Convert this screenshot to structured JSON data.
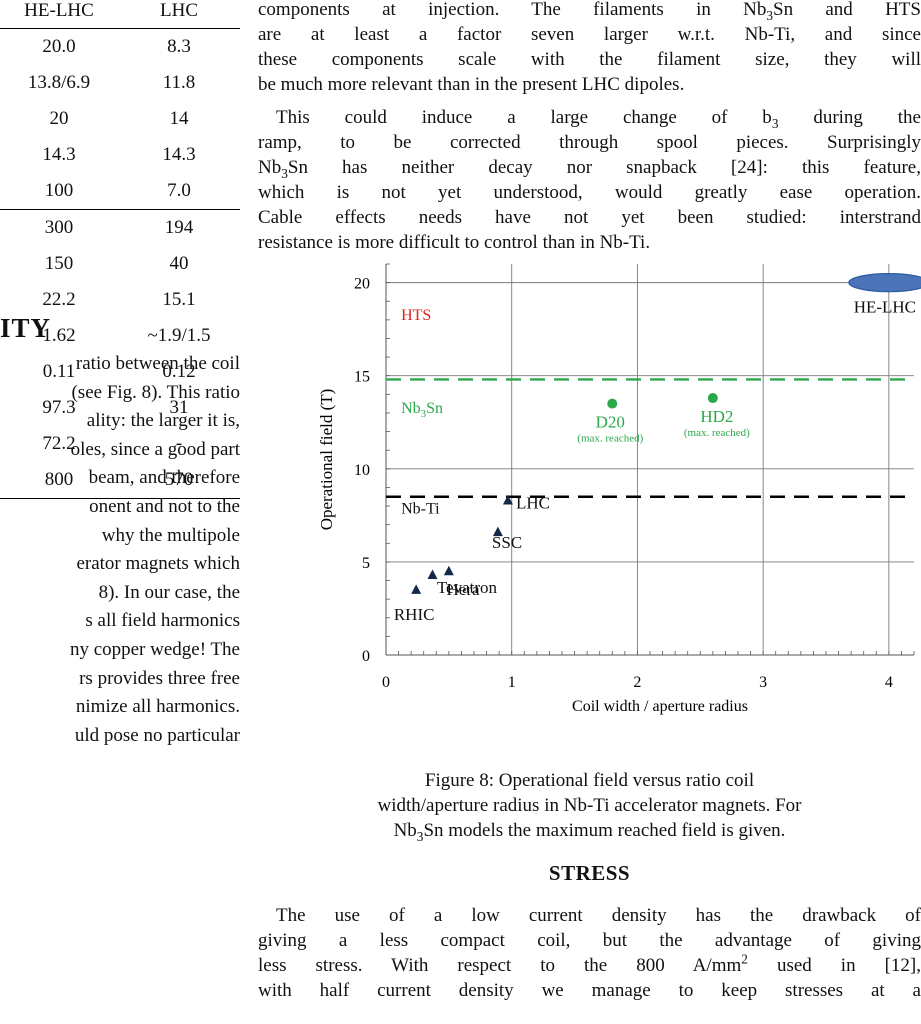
{
  "table": {
    "header": [
      "HE-LHC",
      "LHC"
    ],
    "rows": [
      [
        "20.0",
        "8.3"
      ],
      [
        "13.8/6.9",
        "11.8"
      ],
      [
        "20",
        "14"
      ],
      [
        "14.3",
        "14.3"
      ],
      [
        "100",
        "7.0"
      ],
      [
        "300",
        "194"
      ],
      [
        "150",
        "40"
      ],
      [
        "22.2",
        "15.1"
      ],
      [
        "1.62",
        "~1.9/1.5"
      ],
      [
        "0.11",
        "0.12"
      ],
      [
        "97.3",
        "31"
      ],
      [
        "72.2",
        "-"
      ],
      [
        "800",
        "570"
      ]
    ]
  },
  "left": {
    "heading": "ITY",
    "lines": [
      "ratio between the coil",
      "(see Fig. 8). This ratio",
      "ality: the larger it is,",
      "oles, since a good part",
      "beam, and therefore",
      "onent and not to the",
      "why the multipole",
      "erator magnets which",
      "8). In our case, the",
      "s all field harmonics",
      "ny copper wedge! The",
      "rs provides three free",
      "nimize all harmonics.",
      "uld pose no particular"
    ]
  },
  "right_top": {
    "p1": [
      [
        "components at injection. The filaments in Nb",
        "3",
        "Sn and HTS"
      ],
      [
        "are at least a factor seven larger w.r.t. Nb-Ti, and since",
        "",
        ""
      ],
      [
        "these components scale with the filament size, they will",
        "",
        ""
      ],
      [
        "be much more relevant than in the present LHC dipoles.",
        "",
        ""
      ]
    ],
    "p2_l1_a": "This could induce a large change of b",
    "p2_l1_sub": "3",
    "p2_l1_b": " during the",
    "p2_l2": "ramp, to be corrected through spool pieces. Surprisingly",
    "p2_l3_a": "Nb",
    "p2_l3_sub": "3",
    "p2_l3_b": "Sn has neither decay nor snapback [24]: this feature,",
    "p2_l4": "which is not yet understood, would greatly ease operation.",
    "p2_l5": "Cable effects needs have not yet been studied: interstrand",
    "p2_l6": "resistance is more difficult to control than in Nb-Ti."
  },
  "chart_data": {
    "type": "scatter",
    "xlabel": "Coil width  / aperture radius",
    "ylabel": "Operational field (T)",
    "xlim": [
      0,
      4.2
    ],
    "ylim": [
      0,
      21
    ],
    "x_ticks": [
      "0",
      "1",
      "2",
      "3",
      "4"
    ],
    "y_ticks": [
      "0",
      "5",
      "10",
      "15",
      "20"
    ],
    "grid": true,
    "hlines": [
      {
        "y": 14.8,
        "color": "#2BA84A",
        "style": "dashed"
      },
      {
        "y": 8.5,
        "color": "#000000",
        "style": "dashed"
      }
    ],
    "region_labels": [
      {
        "text": "HTS",
        "x": 0.12,
        "y": 18.0,
        "color": "#E02020"
      },
      {
        "text": "Nb₃Sn",
        "x": 0.12,
        "y": 13.0,
        "color": "#2BA84A"
      },
      {
        "text": "Nb-Ti",
        "x": 0.12,
        "y": 7.6,
        "color": "#111111"
      }
    ],
    "series": [
      {
        "marker": "triangle",
        "color": "#13284A",
        "points": [
          {
            "label": "RHIC",
            "x": 0.24,
            "y": 3.5
          },
          {
            "label": "Hera",
            "x": 0.37,
            "y": 4.3
          },
          {
            "label": "Tevatron",
            "x": 0.5,
            "y": 4.5
          },
          {
            "label": "SSC",
            "x": 0.89,
            "y": 6.6
          },
          {
            "label": "LHC",
            "x": 0.97,
            "y": 8.3
          }
        ]
      },
      {
        "marker": "circle",
        "color": "#2BA84A",
        "points": [
          {
            "label": "D20",
            "sublabel": "(max. reached)",
            "x": 1.8,
            "y": 13.5
          },
          {
            "label": "HD2",
            "sublabel": "(max. reached)",
            "x": 2.6,
            "y": 13.8
          }
        ]
      },
      {
        "marker": "ellipse",
        "color": "#4A73B8",
        "points": [
          {
            "label": "HE-LHC",
            "x": 4.0,
            "y": 20.0
          }
        ]
      }
    ]
  },
  "caption": {
    "l1": "Figure 8: Operational field versus ratio coil",
    "l2": "width/aperture radius in Nb-Ti accelerator magnets. For",
    "l3_a": "Nb",
    "l3_sub": "3",
    "l3_b": "Sn models the maximum reached field is given."
  },
  "stress": {
    "heading": "STRESS",
    "l1": "The use of a low current density has the drawback of",
    "l2": "giving a less compact coil, but the advantage of giving",
    "l3_a": "less stress. With respect to the 800 A/mm",
    "l3_sup": "2",
    "l3_b": " used in [12],",
    "l4": "with half current density we manage to keep stresses at a"
  }
}
